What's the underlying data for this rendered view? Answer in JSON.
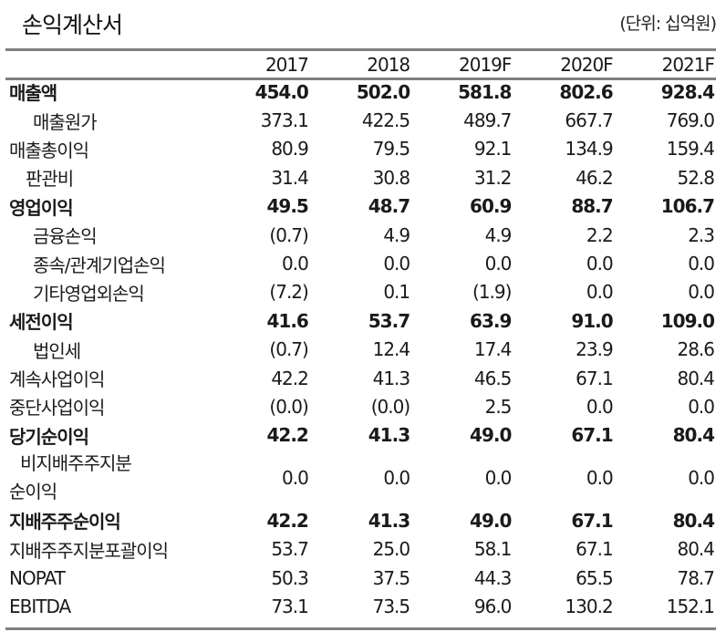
{
  "header": {
    "title": "손익계산서",
    "unit": "(단위: 십억원)"
  },
  "table": {
    "columns": [
      "2017",
      "2018",
      "2019F",
      "2020F",
      "2021F"
    ],
    "rows": [
      {
        "label": "매출액",
        "bold": true,
        "indent": 0,
        "values": [
          "454.0",
          "502.0",
          "581.8",
          "802.6",
          "928.4"
        ]
      },
      {
        "label": "매출원가",
        "bold": false,
        "indent": 1,
        "values": [
          "373.1",
          "422.5",
          "489.7",
          "667.7",
          "769.0"
        ]
      },
      {
        "label": "매출총이익",
        "bold": false,
        "indent": 0,
        "values": [
          "80.9",
          "79.5",
          "92.1",
          "134.9",
          "159.4"
        ]
      },
      {
        "label": "판관비",
        "bold": false,
        "indent": 2,
        "values": [
          "31.4",
          "30.8",
          "31.2",
          "46.2",
          "52.8"
        ]
      },
      {
        "label": "영업이익",
        "bold": true,
        "indent": 0,
        "values": [
          "49.5",
          "48.7",
          "60.9",
          "88.7",
          "106.7"
        ]
      },
      {
        "label": "금융손익",
        "bold": false,
        "indent": 1,
        "values": [
          "(0.7)",
          "4.9",
          "4.9",
          "2.2",
          "2.3"
        ]
      },
      {
        "label": "종속/관계기업손익",
        "bold": false,
        "indent": 1,
        "values": [
          "0.0",
          "0.0",
          "0.0",
          "0.0",
          "0.0"
        ]
      },
      {
        "label": "기타영업외손익",
        "bold": false,
        "indent": 1,
        "values": [
          "(7.2)",
          "0.1",
          "(1.9)",
          "0.0",
          "0.0"
        ]
      },
      {
        "label": "세전이익",
        "bold": true,
        "indent": 0,
        "values": [
          "41.6",
          "53.7",
          "63.9",
          "91.0",
          "109.0"
        ]
      },
      {
        "label": "법인세",
        "bold": false,
        "indent": 1,
        "values": [
          "(0.7)",
          "12.4",
          "17.4",
          "23.9",
          "28.6"
        ]
      },
      {
        "label": "계속사업이익",
        "bold": false,
        "indent": 0,
        "values": [
          "42.2",
          "41.3",
          "46.5",
          "67.1",
          "80.4"
        ]
      },
      {
        "label": "중단사업이익",
        "bold": false,
        "indent": 0,
        "values": [
          "(0.0)",
          "(0.0)",
          "2.5",
          "0.0",
          "0.0"
        ]
      },
      {
        "label": "당기순이익",
        "bold": true,
        "indent": 0,
        "values": [
          "42.2",
          "41.3",
          "49.0",
          "67.1",
          "80.4"
        ]
      },
      {
        "label_line1": "비지배주주지분",
        "label_line2": "순이익",
        "bold": false,
        "indent": 3,
        "values": [
          "0.0",
          "0.0",
          "0.0",
          "0.0",
          "0.0"
        ]
      },
      {
        "label": "지배주주순이익",
        "bold": true,
        "indent": 0,
        "values": [
          "42.2",
          "41.3",
          "49.0",
          "67.1",
          "80.4"
        ]
      },
      {
        "label": "지배주주지분포괄이익",
        "bold": false,
        "indent": 0,
        "values": [
          "53.7",
          "25.0",
          "58.1",
          "67.1",
          "80.4"
        ]
      },
      {
        "label": "NOPAT",
        "bold": false,
        "indent": 0,
        "values": [
          "50.3",
          "37.5",
          "44.3",
          "65.5",
          "78.7"
        ]
      },
      {
        "label": "EBITDA",
        "bold": false,
        "indent": 0,
        "values": [
          "73.1",
          "73.5",
          "96.0",
          "130.2",
          "152.1"
        ]
      }
    ]
  },
  "colors": {
    "rule": "#7f7f7f",
    "text": "#1a1a1a"
  }
}
